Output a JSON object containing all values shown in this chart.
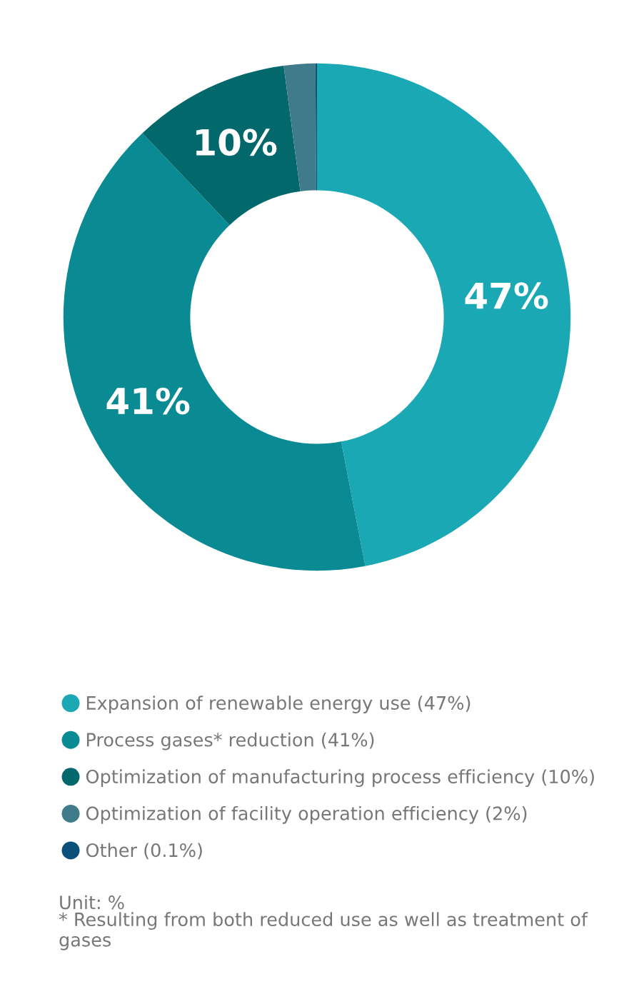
{
  "chart_data": {
    "type": "donut",
    "categories": [
      "Expansion of renewable energy use (47%)",
      "Process gases* reduction (41%)",
      "Optimization of manufacturing process efficiency (10%)",
      "Optimization of facility operation efficiency (2%)",
      "Other (0.1%)"
    ],
    "values": [
      47,
      41,
      10,
      2,
      0.1
    ],
    "colors": [
      "#1aa9b4",
      "#0a8a93",
      "#03686c",
      "#3f7b8b",
      "#0b4f7b"
    ],
    "value_labels": [
      "47%",
      "41%",
      "10%",
      null,
      null
    ],
    "legend": "bottom",
    "annotations": [
      "Unit: %",
      "* Resulting from both reduced use as well as treatment of gases"
    ]
  }
}
